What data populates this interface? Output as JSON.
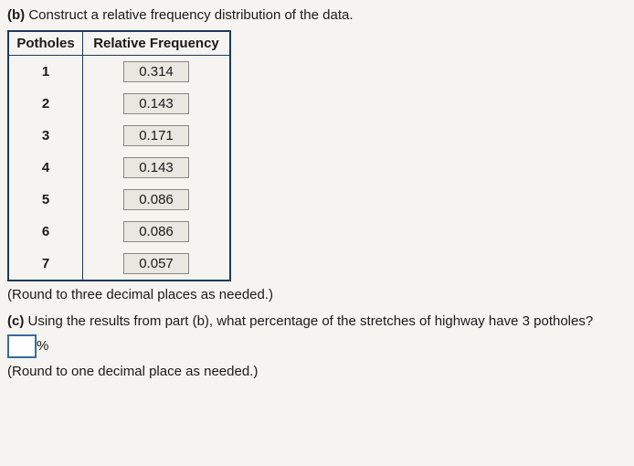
{
  "part_b": {
    "label": "(b)",
    "text": "Construct a relative frequency distribution of the data."
  },
  "table": {
    "headers": {
      "col1": "Potholes",
      "col2": "Relative Frequency"
    },
    "rows": [
      {
        "pothole": "1",
        "freq": "0.314"
      },
      {
        "pothole": "2",
        "freq": "0.143"
      },
      {
        "pothole": "3",
        "freq": "0.171"
      },
      {
        "pothole": "4",
        "freq": "0.143"
      },
      {
        "pothole": "5",
        "freq": "0.086"
      },
      {
        "pothole": "6",
        "freq": "0.086"
      },
      {
        "pothole": "7",
        "freq": "0.057"
      }
    ]
  },
  "note_b": "(Round to three decimal places as needed.)",
  "part_c": {
    "label": "(c)",
    "text": "Using the results from part (b), what percentage of the stretches of highway have 3 potholes?"
  },
  "percent_symbol": "%",
  "note_c": "(Round to one decimal place as needed.)"
}
